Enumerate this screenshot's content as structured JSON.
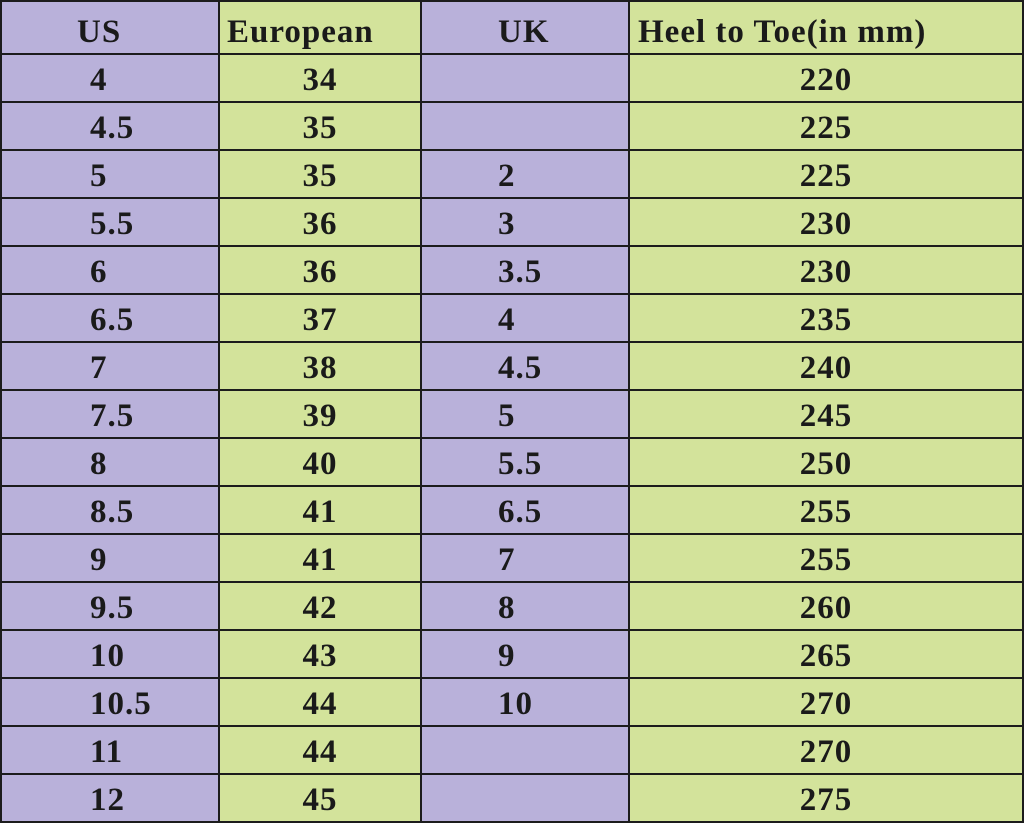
{
  "table": {
    "header": [
      "US",
      "European",
      "UK",
      "Heel to Toe(in mm)"
    ],
    "rows": [
      [
        4,
        34,
        null,
        220
      ],
      [
        4.5,
        35,
        null,
        225
      ],
      [
        5,
        35,
        2,
        225
      ],
      [
        5.5,
        36,
        3,
        230
      ],
      [
        6,
        36,
        3.5,
        230
      ],
      [
        6.5,
        37,
        4,
        235
      ],
      [
        7,
        38,
        4.5,
        240
      ],
      [
        7.5,
        39,
        5,
        245
      ],
      [
        8,
        40,
        5.5,
        250
      ],
      [
        8.5,
        41,
        6.5,
        255
      ],
      [
        9,
        41,
        7,
        255
      ],
      [
        9.5,
        42,
        8,
        260
      ],
      [
        10,
        43,
        9,
        265
      ],
      [
        10.5,
        44,
        10,
        270
      ],
      [
        11,
        44,
        null,
        270
      ],
      [
        12,
        45,
        null,
        275
      ]
    ]
  }
}
